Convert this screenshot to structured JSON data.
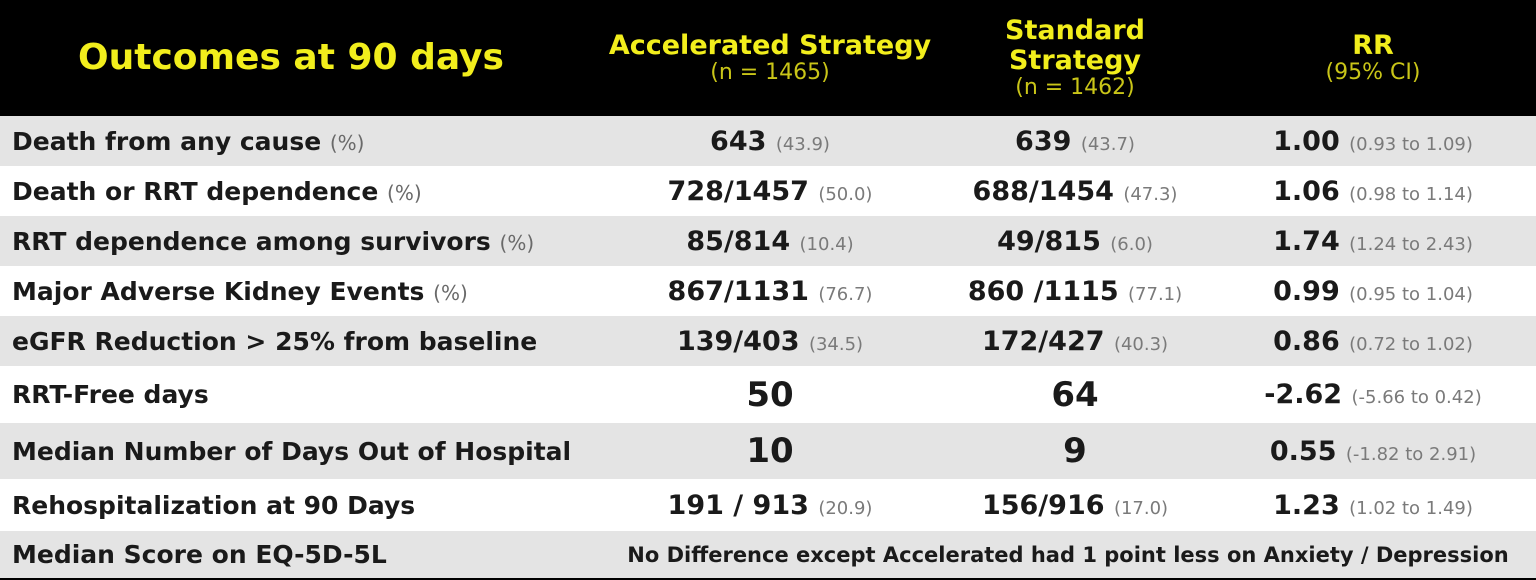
{
  "header": {
    "title": "Outcomes at 90 days",
    "columns": [
      {
        "name": "Accelerated Strategy",
        "sub": "(n = 1465)"
      },
      {
        "name": "Standard Strategy",
        "sub": "(n = 1462)"
      },
      {
        "name": "RR",
        "sub": "(95% CI)"
      }
    ]
  },
  "rows": [
    {
      "label": "Death from any cause",
      "note": "(%)",
      "cells": [
        [
          "643",
          "(43.9)"
        ],
        [
          "639",
          "(43.7)"
        ],
        [
          "1.00",
          "(0.93 to 1.09)"
        ]
      ]
    },
    {
      "label": "Death or RRT dependence",
      "note": "(%)",
      "cells": [
        [
          "728/1457",
          "(50.0)"
        ],
        [
          "688/1454",
          "(47.3)"
        ],
        [
          "1.06",
          "(0.98 to 1.14)"
        ]
      ]
    },
    {
      "label": "RRT dependence among survivors",
      "note": "(%)",
      "cells": [
        [
          "85/814",
          "(10.4)"
        ],
        [
          "49/815",
          "(6.0)"
        ],
        [
          "1.74",
          "(1.24 to 2.43)"
        ]
      ]
    },
    {
      "label": "Major Adverse Kidney Events",
      "note": "(%)",
      "cells": [
        [
          "867/1131",
          "(76.7)"
        ],
        [
          "860 /1115",
          "(77.1)"
        ],
        [
          "0.99",
          "(0.95 to 1.04)"
        ]
      ]
    },
    {
      "label": "eGFR Reduction > 25% from baseline",
      "cells": [
        [
          "139/403",
          "(34.5)"
        ],
        [
          "172/427",
          "(40.3)"
        ],
        [
          "0.86",
          "(0.72 to 1.02)"
        ]
      ]
    },
    {
      "label": "RRT-Free days",
      "cells": [
        [
          "50"
        ],
        [
          "64"
        ],
        [
          "-2.62",
          "(-5.66 to 0.42)"
        ]
      ]
    },
    {
      "label": "Median Number of Days Out of Hospital",
      "cells": [
        [
          "10"
        ],
        [
          "9"
        ],
        [
          "0.55",
          "(-1.82 to 2.91)"
        ]
      ]
    },
    {
      "label": "Rehospitalization at 90 Days",
      "cells": [
        [
          "191 / 913",
          "(20.9)"
        ],
        [
          "156/916",
          "(17.0)"
        ],
        [
          "1.23",
          "(1.02 to 1.49)"
        ]
      ]
    },
    {
      "label": "Median Score on EQ-5D-5L",
      "text": "No Difference except Accelerated had 1 point less on Anxiety / Depression"
    }
  ]
}
